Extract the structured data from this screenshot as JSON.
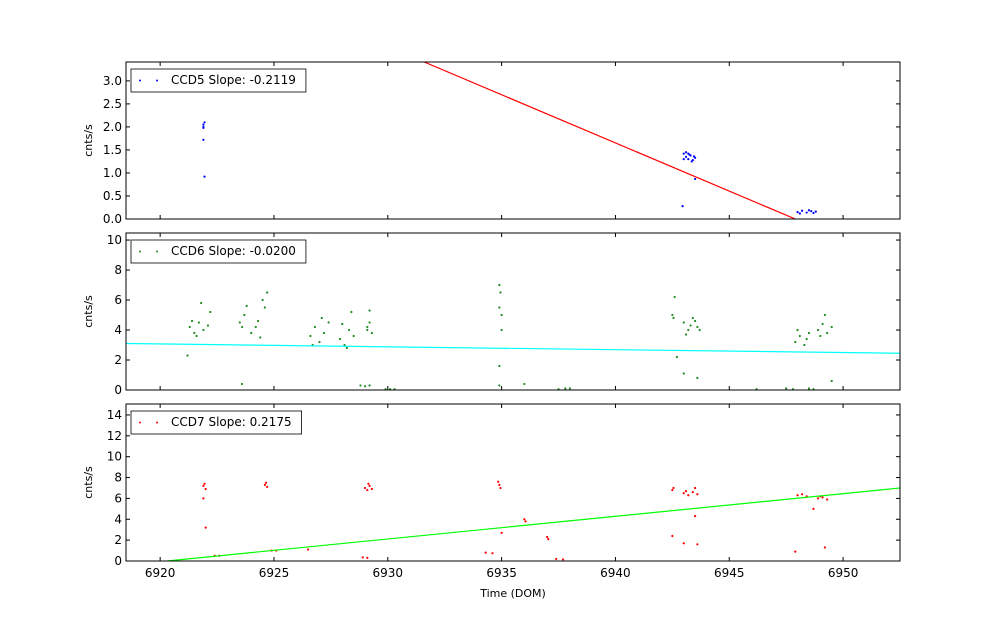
{
  "chart_data": [
    {
      "type": "scatter",
      "ylabel": "cnts/s",
      "xlim": [
        6918.5,
        6952.5
      ],
      "xticks": [
        6920,
        6925,
        6930,
        6935,
        6940,
        6945,
        6950
      ],
      "ylim": [
        0,
        3.41
      ],
      "yticks": [
        {
          "value": 0,
          "label": "0.0"
        },
        {
          "value": 0.5,
          "label": "0.5"
        },
        {
          "value": 1,
          "label": "1.0"
        },
        {
          "value": 1.5,
          "label": "1.5"
        },
        {
          "value": 2,
          "label": "2.0"
        },
        {
          "value": 2.5,
          "label": "2.5"
        },
        {
          "value": 3,
          "label": "3.0"
        }
      ],
      "legend": "upper left",
      "series": [
        {
          "name": "CCD5 Slope: -0.2119",
          "color": "#0000ff",
          "x": [
            6921.9,
            6921.9,
            6921.95,
            6921.9,
            6921.9,
            6921.95,
            6943.0,
            6943.1,
            6943.2,
            6943.3,
            6943.4,
            6943.5,
            6943.1,
            6943.25,
            6943.35,
            6943.45,
            6943.0,
            6943.2,
            6942.95,
            6943.5,
            6948.0,
            6948.2,
            6948.4,
            6948.6,
            6948.8,
            6948.1,
            6948.5,
            6948.7
          ],
          "values": [
            2.05,
            1.98,
            2.1,
            2.0,
            1.72,
            0.92,
            1.42,
            1.35,
            1.3,
            1.38,
            1.28,
            1.33,
            1.45,
            1.4,
            1.25,
            1.36,
            1.3,
            1.42,
            0.28,
            0.87,
            0.15,
            0.18,
            0.14,
            0.17,
            0.16,
            0.12,
            0.19,
            0.13
          ]
        }
      ],
      "fit_line": {
        "color": "#ff0000",
        "x": [
          6931.6,
          6947.9
        ],
        "values": [
          3.41,
          0
        ]
      }
    },
    {
      "type": "scatter",
      "ylabel": "cnts/s",
      "xlim": [
        6918.5,
        6952.5
      ],
      "xticks": [
        6920,
        6925,
        6930,
        6935,
        6940,
        6945,
        6950
      ],
      "ylim": [
        0,
        10.47
      ],
      "yticks": [
        0,
        2,
        4,
        6,
        8,
        10
      ],
      "legend": "upper left",
      "series": [
        {
          "name": "CCD6 Slope: -0.0200",
          "color": "#228b22",
          "x": [
            6921.3,
            6921.5,
            6921.7,
            6921.9,
            6922.1,
            6921.6,
            6921.8,
            6922.2,
            6921.4,
            6921.2,
            6923.5,
            6923.7,
            6923.6,
            6923.8,
            6924.0,
            6924.2,
            6924.4,
            6924.3,
            6924.6,
            6924.7,
            6924.5,
            6923.6,
            6926.6,
            6926.8,
            6927.0,
            6927.2,
            6927.4,
            6926.7,
            6927.1,
            6927.9,
            6928.1,
            6928.3,
            6928.5,
            6928.0,
            6928.4,
            6928.2,
            6929.1,
            6929.2,
            6929.3,
            6929.2,
            6929.1,
            6934.9,
            6934.95,
            6935.0,
            6934.9,
            6935.0,
            6942.5,
            6942.6,
            6942.55,
            6943.0,
            6943.2,
            6943.4,
            6943.6,
            6943.1,
            6943.5,
            6943.3,
            6943.7,
            6947.9,
            6948.1,
            6948.3,
            6948.5,
            6948.0,
            6948.4,
            6948.9,
            6949.1,
            6949.3,
            6949.5,
            6949.2,
            6949.0,
            6928.8,
            6929.0,
            6929.2,
            6929.9,
            6930.1,
            6930.3,
            6934.9,
            6936.0,
            6937.5,
            6937.8,
            6938.0,
            6946.2,
            6947.5,
            6947.8,
            6948.5,
            6948.7,
            6942.7,
            6943.0,
            6943.6,
            6949.5,
            6934.9
          ],
          "values": [
            4.2,
            3.8,
            4.5,
            4.0,
            4.3,
            3.6,
            5.8,
            5.2,
            4.6,
            2.3,
            4.5,
            5.0,
            4.2,
            5.6,
            3.8,
            4.2,
            3.5,
            4.6,
            5.5,
            6.5,
            6.0,
            0.4,
            3.6,
            4.2,
            3.2,
            3.8,
            4.5,
            3.0,
            4.8,
            3.4,
            3.0,
            4.0,
            3.6,
            4.4,
            5.2,
            2.8,
            4.0,
            4.5,
            3.8,
            5.3,
            4.2,
            5.5,
            6.5,
            5.0,
            7.0,
            4.0,
            5.0,
            6.2,
            4.8,
            4.5,
            4.0,
            4.8,
            4.2,
            3.7,
            4.6,
            4.3,
            4.0,
            3.2,
            3.6,
            3.0,
            3.8,
            4.0,
            3.4,
            4.0,
            4.4,
            3.8,
            4.2,
            5.0,
            3.6,
            0.3,
            0.25,
            0.3,
            0.05,
            0.05,
            0.05,
            0.3,
            0.4,
            0.05,
            0.1,
            0.1,
            0.05,
            0.1,
            0.05,
            0.1,
            0.05,
            2.2,
            1.1,
            0.8,
            0.6,
            1.6
          ]
        }
      ],
      "fit_line": {
        "color": "#00ffff",
        "x": [
          6918.5,
          6952.5
        ],
        "values": [
          3.1,
          2.45
        ]
      }
    },
    {
      "type": "scatter",
      "ylabel": "cnts/s",
      "xlabel": "Time (DOM)",
      "xlim": [
        6918.5,
        6952.5
      ],
      "xticks": [
        6920,
        6925,
        6930,
        6935,
        6940,
        6945,
        6950
      ],
      "ylim": [
        0,
        15.05
      ],
      "yticks": [
        0,
        2,
        4,
        6,
        8,
        10,
        12,
        14
      ],
      "legend": "upper left",
      "series": [
        {
          "name": "CCD7 Slope: 0.2175",
          "color": "#ff0000",
          "x": [
            6921.9,
            6922.0,
            6921.95,
            6921.9,
            6922.0,
            6924.6,
            6924.7,
            6924.65,
            6929.0,
            6929.1,
            6929.2,
            6929.3,
            6929.15,
            6934.9,
            6934.95,
            6934.85,
            6936.0,
            6936.05,
            6937.0,
            6937.05,
            6942.5,
            6942.55,
            6942.5,
            6943.0,
            6943.2,
            6943.4,
            6943.6,
            6943.5,
            6943.1,
            6943.6,
            6943.0,
            6943.5,
            6948.0,
            6948.2,
            6948.4,
            6947.9,
            6948.9,
            6949.1,
            6949.3,
            6949.0,
            6949.2,
            6948.7,
            6922.4,
            6922.6,
            6924.9,
            6925.1,
            6926.5,
            6928.9,
            6929.1,
            6934.3,
            6934.6,
            6935.0,
            6937.4,
            6937.7
          ],
          "values": [
            7.2,
            6.9,
            7.4,
            6.0,
            3.2,
            7.3,
            7.1,
            7.5,
            7.0,
            6.8,
            7.2,
            6.9,
            7.4,
            7.3,
            7.0,
            7.6,
            4.0,
            3.8,
            2.3,
            2.1,
            6.8,
            7.0,
            2.4,
            6.5,
            6.3,
            6.6,
            6.4,
            7.0,
            6.7,
            1.6,
            1.7,
            4.3,
            6.3,
            6.4,
            6.2,
            0.9,
            6.0,
            6.1,
            5.9,
            6.2,
            1.3,
            5.0,
            0.5,
            0.5,
            1.0,
            1.0,
            1.1,
            0.35,
            0.3,
            0.8,
            0.75,
            2.7,
            0.2,
            0.15
          ]
        }
      ],
      "fit_line": {
        "color": "#00ff00",
        "x": [
          6920.3,
          6952.5
        ],
        "values": [
          0,
          7.0
        ]
      }
    }
  ]
}
